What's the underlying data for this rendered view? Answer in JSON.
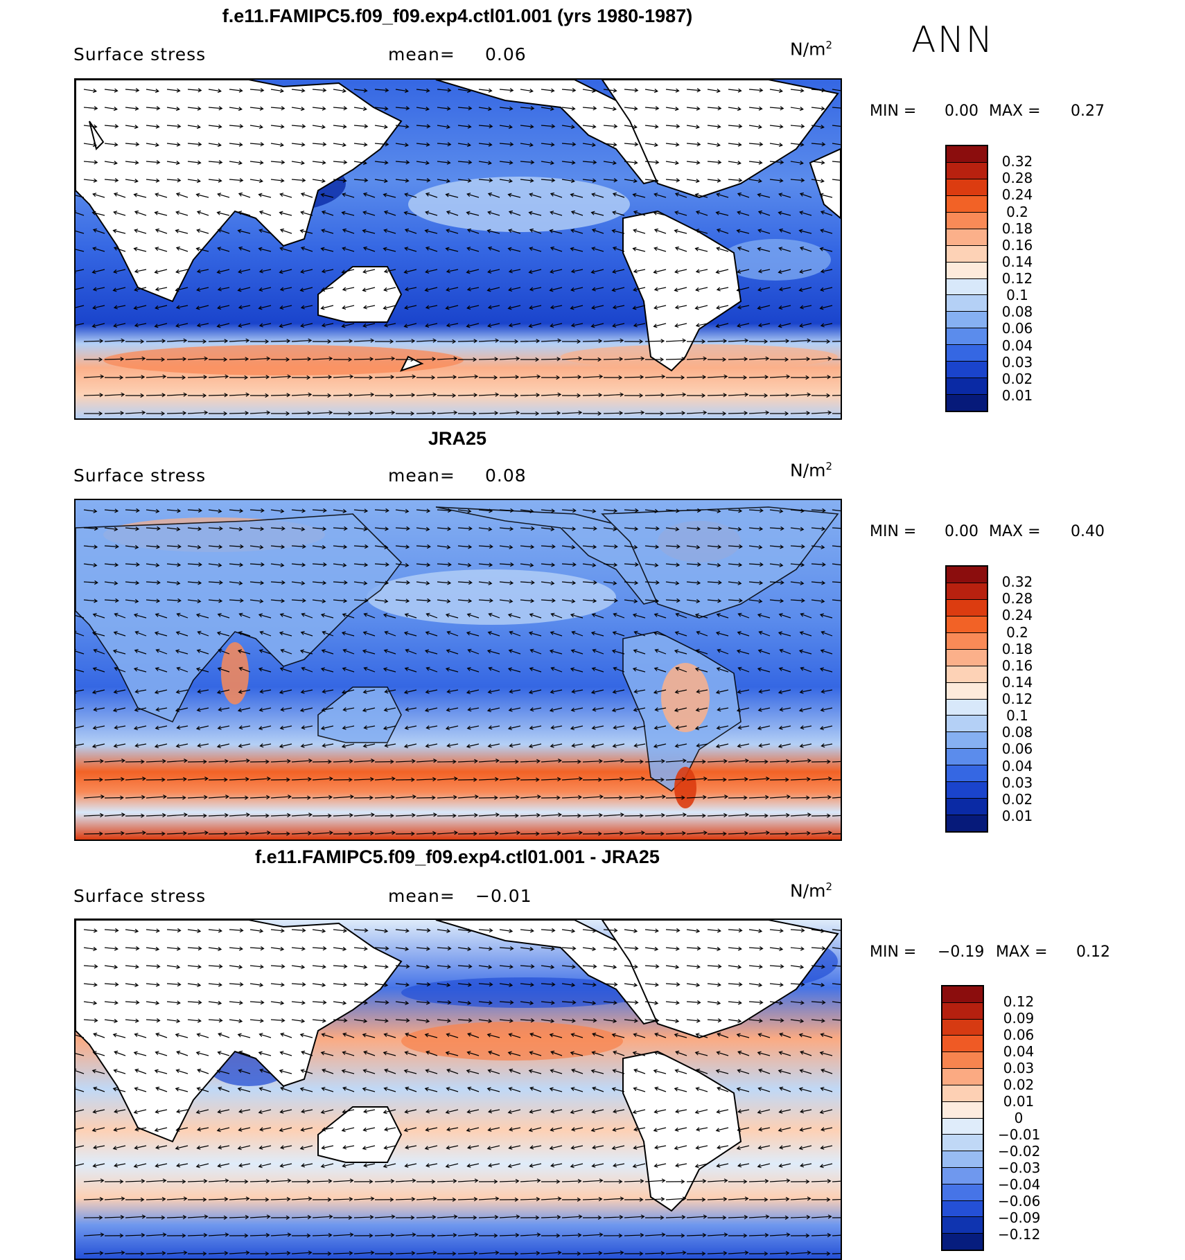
{
  "season": "ANN",
  "panels": [
    {
      "title": "f.e11.FAMIPC5.f09_f09.exp4.ctl01.001 (yrs 1980-1987)",
      "variable": "Surface stress",
      "mean_label": "mean=",
      "mean_value": "0.06",
      "units_base": "N/m",
      "units_exp": "2",
      "min_label": "MIN =",
      "min_value": "0.00",
      "max_label": "MAX =",
      "max_value": "0.27",
      "colorbar": {
        "labels": [
          "0.32",
          "0.28",
          "0.24",
          "0.2",
          "0.18",
          "0.16",
          "0.14",
          "0.12",
          "0.1",
          "0.08",
          "0.06",
          "0.04",
          "0.03",
          "0.02",
          "0.01"
        ],
        "colors": [
          "#8b0d0d",
          "#b8210f",
          "#dc3c10",
          "#f26226",
          "#f98a57",
          "#fbb08a",
          "#fdd2b6",
          "#fdeadb",
          "#d8e8fa",
          "#b4d0f6",
          "#86b0f2",
          "#5b8cec",
          "#3567e3",
          "#1a44cc",
          "#0a2aa5",
          "#061a7a"
        ]
      }
    },
    {
      "title": "JRA25",
      "variable": "Surface stress",
      "mean_label": "mean=",
      "mean_value": "0.08",
      "units_base": "N/m",
      "units_exp": "2",
      "min_label": "MIN =",
      "min_value": "0.00",
      "max_label": "MAX =",
      "max_value": "0.40",
      "colorbar": {
        "labels": [
          "0.32",
          "0.28",
          "0.24",
          "0.2",
          "0.18",
          "0.16",
          "0.14",
          "0.12",
          "0.1",
          "0.08",
          "0.06",
          "0.04",
          "0.03",
          "0.02",
          "0.01"
        ],
        "colors": [
          "#8b0d0d",
          "#b8210f",
          "#dc3c10",
          "#f26226",
          "#f98a57",
          "#fbb08a",
          "#fdd2b6",
          "#fdeadb",
          "#d8e8fa",
          "#b4d0f6",
          "#86b0f2",
          "#5b8cec",
          "#3567e3",
          "#1a44cc",
          "#0a2aa5",
          "#061a7a"
        ]
      }
    },
    {
      "title": "f.e11.FAMIPC5.f09_f09.exp4.ctl01.001 - JRA25",
      "variable": "Surface stress",
      "mean_label": "mean=",
      "mean_value": "−0.01",
      "units_base": "N/m",
      "units_exp": "2",
      "min_label": "MIN =",
      "min_value": "−0.19",
      "max_label": "MAX =",
      "max_value": "0.12",
      "colorbar": {
        "labels": [
          "0.12",
          "0.09",
          "0.06",
          "0.04",
          "0.03",
          "0.02",
          "0.01",
          "0",
          "−0.01",
          "−0.02",
          "−0.03",
          "−0.04",
          "−0.06",
          "−0.09",
          "−0.12"
        ],
        "colors": [
          "#8b0d0d",
          "#b5200f",
          "#d63a12",
          "#ef5a25",
          "#f7844f",
          "#fbaa82",
          "#fdd0b4",
          "#fdecdf",
          "#dfecfa",
          "#c0d8f6",
          "#98bcf3",
          "#6f98ee",
          "#4674e7",
          "#2450d6",
          "#0f34b0",
          "#061d7e"
        ]
      }
    }
  ]
}
